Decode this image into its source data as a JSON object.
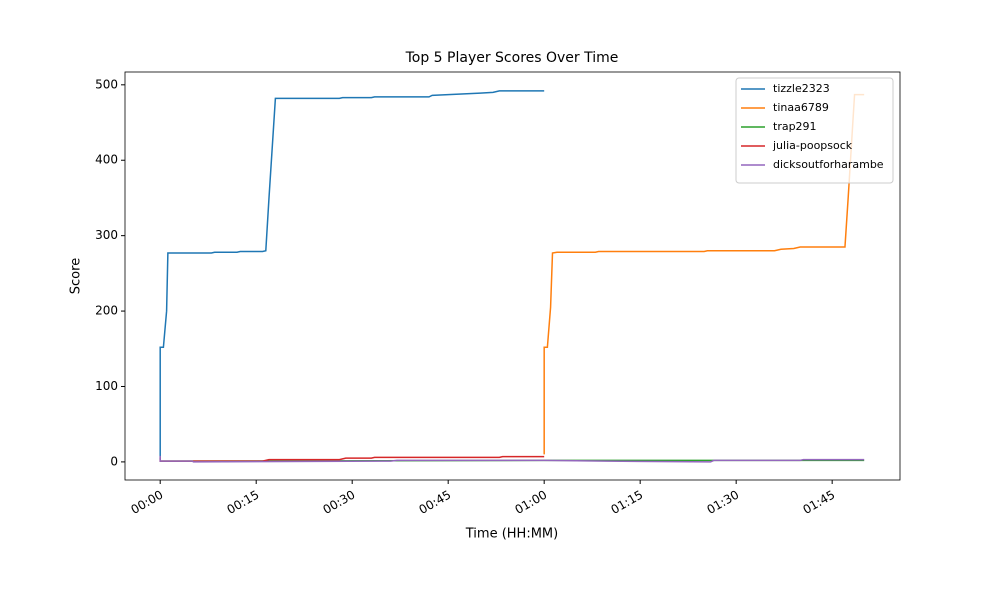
{
  "chart_data": {
    "type": "line",
    "title": "Top 5 Player Scores Over Time",
    "xlabel": "Time (HH:MM)",
    "ylabel": "Score",
    "xlim": [
      -5.5,
      115.6
    ],
    "ylim": [
      -24,
      517
    ],
    "xticks": [
      {
        "value": 0,
        "label": "00:00"
      },
      {
        "value": 15,
        "label": "00:15"
      },
      {
        "value": 30,
        "label": "00:30"
      },
      {
        "value": 45,
        "label": "00:45"
      },
      {
        "value": 60,
        "label": "01:00"
      },
      {
        "value": 75,
        "label": "01:15"
      },
      {
        "value": 90,
        "label": "01:30"
      },
      {
        "value": 105,
        "label": "01:45"
      }
    ],
    "yticks": [
      0,
      100,
      200,
      300,
      400,
      500
    ],
    "legend": "upper right",
    "series": [
      {
        "name": "tizzle2323",
        "color": "#1f77b4",
        "x": [
          0,
          0,
          0.5,
          1,
          1.2,
          8,
          8.5,
          12,
          12.5,
          16,
          16.5,
          17,
          18,
          28,
          28.5,
          33,
          33.5,
          42,
          42.5,
          45,
          50,
          52,
          53,
          60
        ],
        "values": [
          3,
          152,
          152,
          200,
          277,
          277,
          278,
          278,
          279,
          279,
          280,
          350,
          482,
          482,
          483,
          483,
          484,
          484,
          486,
          487,
          489,
          490,
          492,
          492
        ]
      },
      {
        "name": "tinaa6789",
        "color": "#ff7f0e",
        "x": [
          60,
          60,
          60.5,
          61,
          61.3,
          62,
          68,
          68.5,
          85,
          85.5,
          96,
          97,
          99,
          100,
          107,
          107.5,
          108.5,
          110
        ],
        "values": [
          10,
          152,
          152,
          205,
          277,
          278,
          278,
          279,
          279,
          280,
          280,
          282,
          283,
          285,
          285,
          350,
          487,
          487
        ]
      },
      {
        "name": "trap291",
        "color": "#2ca02c",
        "x": [
          0,
          60,
          110
        ],
        "values": [
          1,
          2,
          2
        ]
      },
      {
        "name": "julia-poopsock",
        "color": "#d62728",
        "x": [
          0,
          0,
          16,
          17,
          28,
          29,
          33,
          33.5,
          53,
          53.5,
          60
        ],
        "values": [
          5,
          1,
          1,
          3,
          3,
          5,
          5,
          6,
          6,
          7,
          7
        ]
      },
      {
        "name": "dicksoutforharambe",
        "color": "#9467bd",
        "x": [
          0,
          0,
          5,
          5.2,
          36,
          37,
          60,
          70,
          86,
          86.5,
          100,
          100.5,
          110
        ],
        "values": [
          8,
          1,
          1,
          0,
          1,
          2,
          2,
          1,
          0,
          2,
          2,
          3,
          3
        ]
      }
    ]
  }
}
